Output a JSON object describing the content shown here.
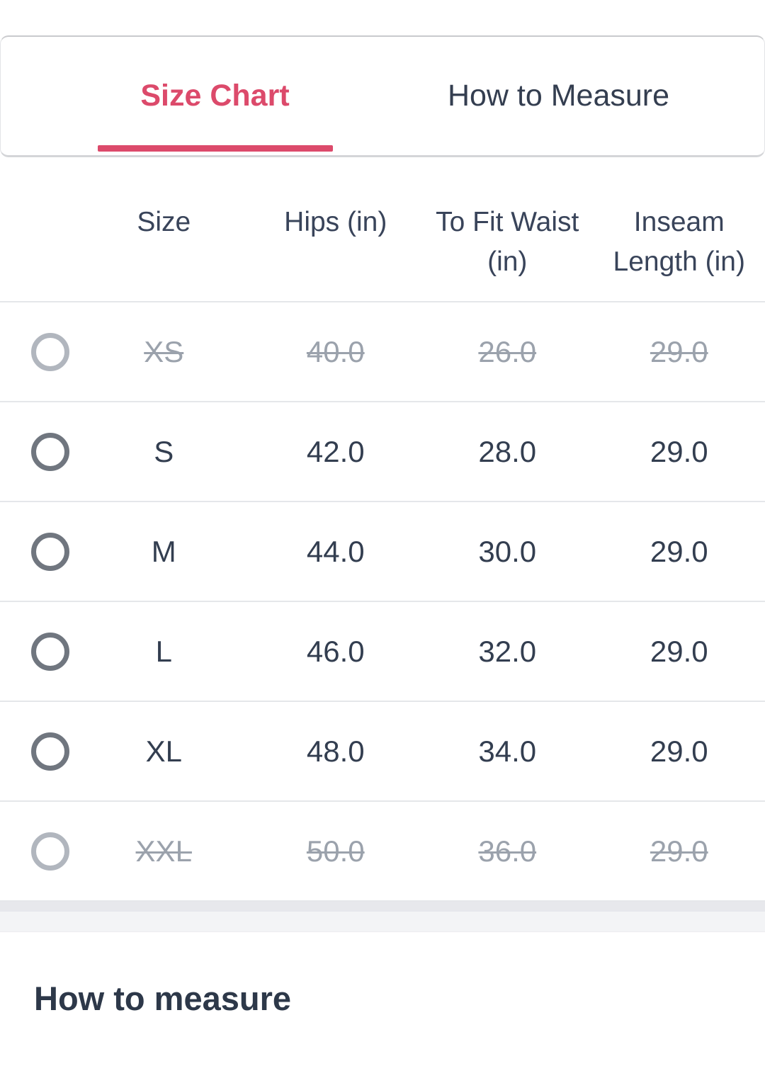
{
  "tab_bar": {
    "tabs": [
      {
        "label": "Size Chart",
        "active": true
      },
      {
        "label": "How to Measure",
        "active": false
      }
    ]
  },
  "size_table": {
    "columns": [
      "Size",
      "Hips (in)",
      "To Fit Waist (in)",
      "Inseam Length (in)"
    ],
    "rows": [
      {
        "size": "XS",
        "hips": "40.0",
        "waist": "26.0",
        "inseam": "29.0",
        "available": false
      },
      {
        "size": "S",
        "hips": "42.0",
        "waist": "28.0",
        "inseam": "29.0",
        "available": true
      },
      {
        "size": "M",
        "hips": "44.0",
        "waist": "30.0",
        "inseam": "29.0",
        "available": true
      },
      {
        "size": "L",
        "hips": "46.0",
        "waist": "32.0",
        "inseam": "29.0",
        "available": true
      },
      {
        "size": "XL",
        "hips": "48.0",
        "waist": "34.0",
        "inseam": "29.0",
        "available": true
      },
      {
        "size": "XXL",
        "hips": "50.0",
        "waist": "36.0",
        "inseam": "29.0",
        "available": false
      }
    ]
  },
  "section_heading": "How to measure",
  "colors": {
    "accent_pink": "#dc4a6b",
    "dark_text": "#343e50",
    "disabled_text": "#9ba2ac"
  }
}
